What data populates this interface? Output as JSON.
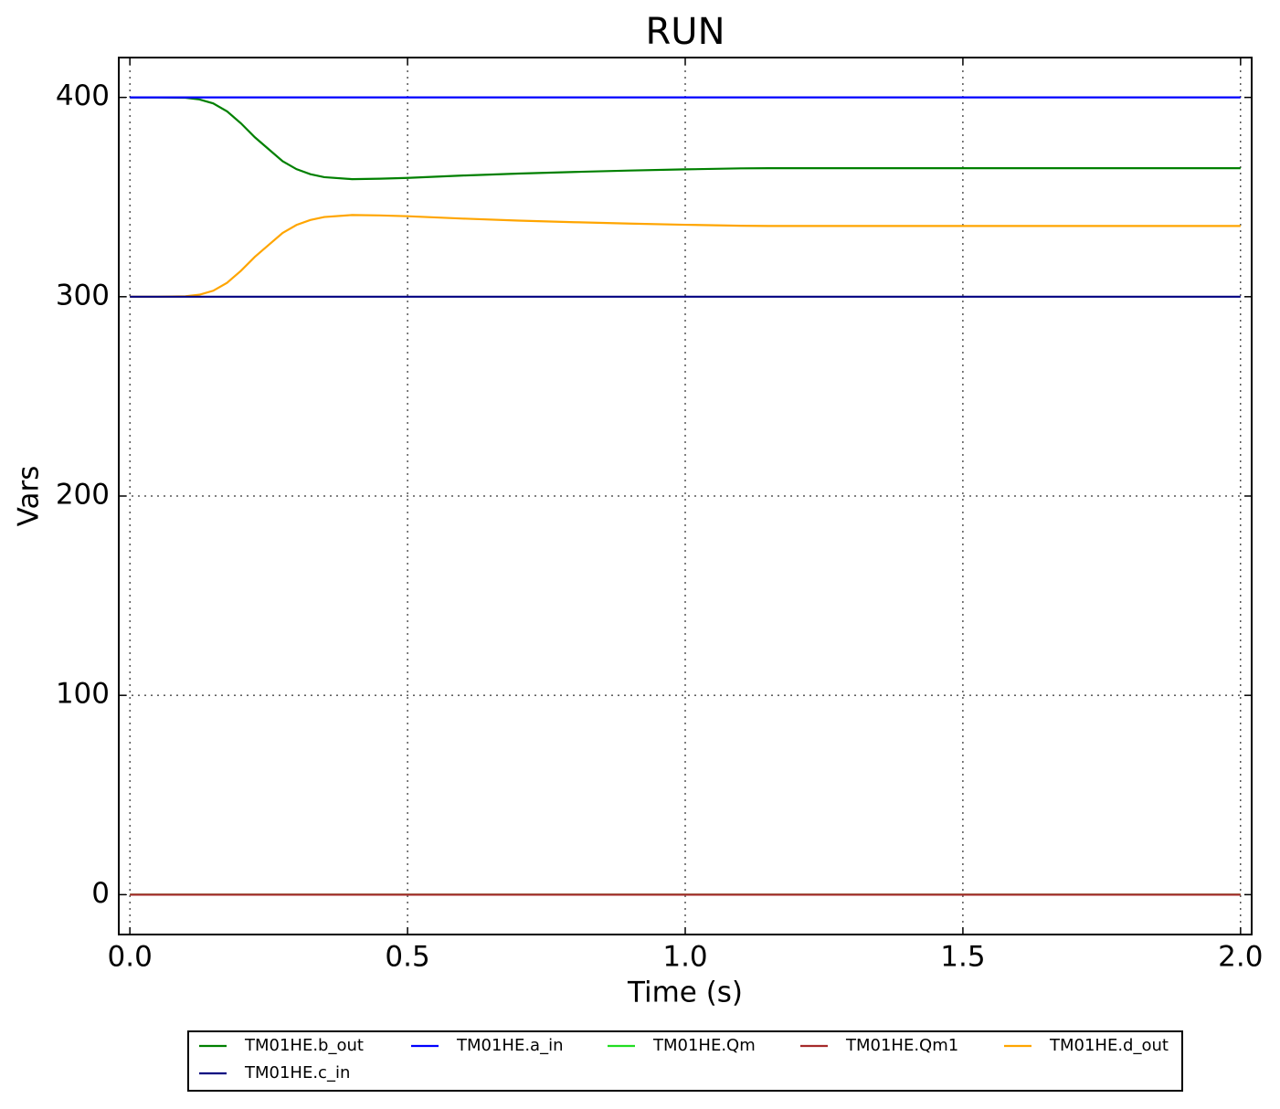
{
  "chart_data": {
    "type": "line",
    "title": "RUN",
    "x_label": "Time (s)",
    "y_label": "Vars",
    "x": [
      0,
      0.05,
      0.1,
      0.125,
      0.15,
      0.175,
      0.2,
      0.225,
      0.25,
      0.275,
      0.3,
      0.325,
      0.35,
      0.4,
      0.45,
      0.5,
      0.6,
      0.7,
      0.8,
      0.9,
      1.0,
      1.1,
      1.15,
      1.2,
      1.4,
      1.6,
      1.8,
      2.0
    ],
    "series": [
      {
        "name": "TM01HE.b_out",
        "color": "#008000",
        "values": [
          400,
          400,
          399.8,
          399,
          397,
          393,
          387,
          380,
          374,
          368,
          364,
          361.5,
          360,
          359,
          359.2,
          359.6,
          360.8,
          361.8,
          362.6,
          363.3,
          363.9,
          364.4,
          364.5,
          364.5,
          364.5,
          364.5,
          364.5,
          364.5
        ]
      },
      {
        "name": "TM01HE.a_in",
        "color": "#0000ff",
        "values": [
          400,
          400,
          400,
          400,
          400,
          400,
          400,
          400,
          400,
          400,
          400,
          400,
          400,
          400,
          400,
          400,
          400,
          400,
          400,
          400,
          400,
          400,
          400,
          400,
          400,
          400,
          400,
          400
        ]
      },
      {
        "name": "TM01HE.Qm",
        "color": "#22dd22",
        "values": [
          0,
          0,
          0,
          0,
          0,
          0,
          0,
          0,
          0,
          0,
          0,
          0,
          0,
          0,
          0,
          0,
          0,
          0,
          0,
          0,
          0,
          0,
          0,
          0,
          0,
          0,
          0,
          0
        ]
      },
      {
        "name": "TM01HE.Qm1",
        "color": "#a52a2a",
        "values": [
          0,
          0,
          0,
          0,
          0,
          0,
          0,
          0,
          0,
          0,
          0,
          0,
          0,
          0,
          0,
          0,
          0,
          0,
          0,
          0,
          0,
          0,
          0,
          0,
          0,
          0,
          0,
          0
        ]
      },
      {
        "name": "TM01HE.d_out",
        "color": "#ffa500",
        "values": [
          300,
          300,
          300.2,
          301,
          303,
          307,
          313,
          320,
          326,
          332,
          336,
          338.5,
          340,
          341,
          340.8,
          340.4,
          339.2,
          338.2,
          337.4,
          336.7,
          336.1,
          335.6,
          335.5,
          335.5,
          335.5,
          335.5,
          335.5,
          335.5
        ]
      },
      {
        "name": "TM01HE.c_in",
        "color": "#000080",
        "values": [
          300,
          300,
          300,
          300,
          300,
          300,
          300,
          300,
          300,
          300,
          300,
          300,
          300,
          300,
          300,
          300,
          300,
          300,
          300,
          300,
          300,
          300,
          300,
          300,
          300,
          300,
          300,
          300
        ]
      }
    ],
    "xlim": [
      -0.02,
      2.02
    ],
    "ylim": [
      -20,
      420
    ],
    "xticks": [
      {
        "value": 0,
        "label": "0.0"
      },
      0.5,
      {
        "value": 1,
        "label": "1.0"
      },
      1.5,
      {
        "value": 2,
        "label": "2.0"
      }
    ],
    "yticks": [
      0,
      100,
      200,
      300,
      400
    ],
    "grid": true,
    "legend": "below"
  }
}
